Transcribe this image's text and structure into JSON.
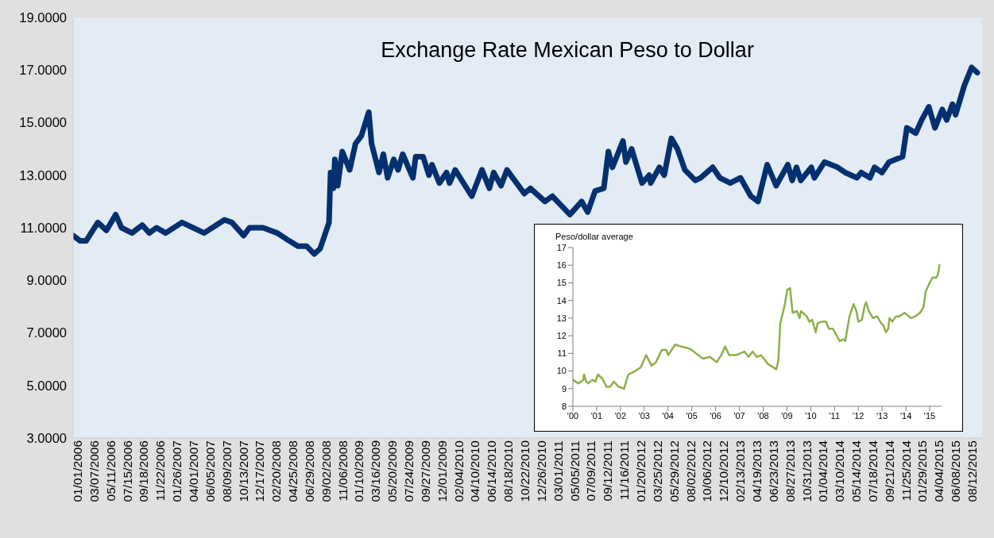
{
  "chart_data": [
    {
      "type": "line",
      "title": "Exchange Rate Mexican Peso to Dollar",
      "color": "#04306f",
      "x": [
        "2006-01-01",
        "2006-01-29",
        "2006-02-21",
        "2006-04-08",
        "2006-05-12",
        "2006-06-17",
        "2006-07-10",
        "2006-08-20",
        "2006-09-29",
        "2006-10-27",
        "2006-11-24",
        "2006-12-30",
        "2007-03-04",
        "2007-05-30",
        "2007-08-18",
        "2007-09-16",
        "2007-11-01",
        "2007-11-24",
        "2008-01-16",
        "2008-03-12",
        "2008-04-28",
        "2008-06-01",
        "2008-07-05",
        "2008-08-04",
        "2008-08-27",
        "2008-10-01",
        "2008-10-07",
        "2008-10-18",
        "2008-10-24",
        "2008-11-04",
        "2008-11-22",
        "2008-12-21",
        "2009-01-13",
        "2009-02-05",
        "2009-03-06",
        "2009-03-17",
        "2009-04-15",
        "2009-05-02",
        "2009-05-19",
        "2009-06-12",
        "2009-06-29",
        "2009-07-17",
        "2009-08-26",
        "2009-09-06",
        "2009-10-05",
        "2009-10-28",
        "2009-11-09",
        "2009-12-08",
        "2010-01-05",
        "2010-01-17",
        "2010-02-08",
        "2010-04-14",
        "2010-05-24",
        "2010-06-22",
        "2010-07-09",
        "2010-08-07",
        "2010-08-30",
        "2010-11-06",
        "2010-11-30",
        "2011-01-26",
        "2011-02-24",
        "2011-05-04",
        "2011-06-19",
        "2011-07-13",
        "2011-08-11",
        "2011-09-14",
        "2011-10-02",
        "2011-10-18",
        "2011-11-28",
        "2011-12-10",
        "2012-01-01",
        "2012-02-11",
        "2012-03-10",
        "2012-03-16",
        "2012-04-19",
        "2012-05-08",
        "2012-06-05",
        "2012-06-29",
        "2012-07-28",
        "2012-09-07",
        "2012-09-28",
        "2012-11-14",
        "2012-12-12",
        "2013-01-22",
        "2013-03-03",
        "2013-04-13",
        "2013-05-11",
        "2013-06-16",
        "2013-07-21",
        "2013-09-05",
        "2013-09-22",
        "2013-10-09",
        "2013-10-26",
        "2013-12-06",
        "2013-12-18",
        "2014-01-27",
        "2014-03-19",
        "2014-04-18",
        "2014-06-03",
        "2014-06-20",
        "2014-07-24",
        "2014-08-11",
        "2014-09-09",
        "2014-10-07",
        "2014-11-29",
        "2014-12-16",
        "2015-01-20",
        "2015-02-12",
        "2015-03-12",
        "2015-04-05",
        "2015-05-04",
        "2015-05-21",
        "2015-06-13",
        "2015-06-25",
        "2015-07-29",
        "2015-08-27",
        "2015-09-18"
      ],
      "values": [
        10.7,
        10.5,
        10.5,
        11.2,
        10.9,
        11.5,
        11.0,
        10.8,
        11.1,
        10.8,
        11.0,
        10.8,
        11.2,
        10.8,
        11.3,
        11.2,
        10.7,
        11.0,
        11.0,
        10.8,
        10.5,
        10.3,
        10.3,
        10.0,
        10.2,
        11.2,
        13.1,
        12.5,
        13.6,
        12.6,
        13.9,
        13.2,
        14.2,
        14.5,
        15.4,
        14.2,
        13.1,
        13.8,
        12.9,
        13.6,
        13.2,
        13.8,
        12.9,
        13.7,
        13.7,
        13.0,
        13.4,
        12.7,
        13.1,
        12.7,
        13.2,
        12.2,
        13.2,
        12.5,
        13.1,
        12.6,
        13.2,
        12.3,
        12.5,
        12.0,
        12.2,
        11.5,
        12.0,
        11.6,
        12.4,
        12.5,
        13.9,
        13.3,
        14.3,
        13.5,
        14.0,
        12.7,
        13.0,
        12.7,
        13.3,
        13.0,
        14.4,
        14.0,
        13.2,
        12.8,
        12.9,
        13.3,
        12.9,
        12.7,
        12.9,
        12.2,
        12.0,
        13.4,
        12.6,
        13.4,
        12.8,
        13.3,
        12.8,
        13.3,
        12.9,
        13.5,
        13.3,
        13.1,
        12.9,
        13.1,
        12.9,
        13.3,
        13.1,
        13.5,
        13.7,
        14.8,
        14.6,
        15.1,
        15.6,
        14.8,
        15.5,
        15.1,
        15.7,
        15.3,
        16.4,
        17.1,
        16.9
      ],
      "xlim": [
        "2006-01-01",
        "2015-10-07"
      ],
      "xticks": [
        {
          "value": "2006-01-01",
          "label": "01/01/2006"
        },
        {
          "value": "2006-03-07",
          "label": "03/07/2006"
        },
        {
          "value": "2006-05-11",
          "label": "05/11/2006"
        },
        {
          "value": "2006-07-15",
          "label": "07/15/2006"
        },
        {
          "value": "2006-09-18",
          "label": "09/18/2006"
        },
        {
          "value": "2006-11-22",
          "label": "11/22/2006"
        },
        {
          "value": "2007-01-26",
          "label": "01/26/2007"
        },
        {
          "value": "2007-04-01",
          "label": "04/01/2007"
        },
        {
          "value": "2007-06-05",
          "label": "06/05/2007"
        },
        {
          "value": "2007-08-09",
          "label": "08/09/2007"
        },
        {
          "value": "2007-10-13",
          "label": "10/13/2007"
        },
        {
          "value": "2007-12-17",
          "label": "12/17/2007"
        },
        {
          "value": "2008-02-20",
          "label": "02/20/2008"
        },
        {
          "value": "2008-04-25",
          "label": "04/25/2008"
        },
        {
          "value": "2008-06-29",
          "label": "06/29/2008"
        },
        {
          "value": "2008-09-02",
          "label": "09/02/2008"
        },
        {
          "value": "2008-11-06",
          "label": "11/06/2008"
        },
        {
          "value": "2009-01-10",
          "label": "01/10/2009"
        },
        {
          "value": "2009-03-16",
          "label": "03/16/2009"
        },
        {
          "value": "2009-05-20",
          "label": "05/20/2009"
        },
        {
          "value": "2009-07-24",
          "label": "07/24/2009"
        },
        {
          "value": "2009-09-27",
          "label": "09/27/2009"
        },
        {
          "value": "2009-12-01",
          "label": "12/01/2009"
        },
        {
          "value": "2010-02-04",
          "label": "02/04/2010"
        },
        {
          "value": "2010-04-10",
          "label": "04/10/2010"
        },
        {
          "value": "2010-06-14",
          "label": "06/14/2010"
        },
        {
          "value": "2010-08-18",
          "label": "08/18/2010"
        },
        {
          "value": "2010-10-22",
          "label": "10/22/2010"
        },
        {
          "value": "2010-12-26",
          "label": "12/26/2010"
        },
        {
          "value": "2011-03-01",
          "label": "03/01/2011"
        },
        {
          "value": "2011-05-05",
          "label": "05/05/2011"
        },
        {
          "value": "2011-07-09",
          "label": "07/09/2011"
        },
        {
          "value": "2011-09-12",
          "label": "09/12/2011"
        },
        {
          "value": "2011-11-16",
          "label": "11/16/2011"
        },
        {
          "value": "2012-01-20",
          "label": "01/20/2012"
        },
        {
          "value": "2012-03-25",
          "label": "03/25/2012"
        },
        {
          "value": "2012-05-29",
          "label": "05/29/2012"
        },
        {
          "value": "2012-08-02",
          "label": "08/02/2012"
        },
        {
          "value": "2012-10-06",
          "label": "10/06/2012"
        },
        {
          "value": "2012-12-10",
          "label": "12/10/2012"
        },
        {
          "value": "2013-02-13",
          "label": "02/13/2013"
        },
        {
          "value": "2013-04-19",
          "label": "04/19/2013"
        },
        {
          "value": "2013-06-23",
          "label": "06/23/2013"
        },
        {
          "value": "2013-08-27",
          "label": "08/27/2013"
        },
        {
          "value": "2013-10-31",
          "label": "10/31/2013"
        },
        {
          "value": "2014-01-04",
          "label": "01/04/2014"
        },
        {
          "value": "2014-03-10",
          "label": "03/10/2014"
        },
        {
          "value": "2014-05-14",
          "label": "05/14/2014"
        },
        {
          "value": "2014-07-18",
          "label": "07/18/2014"
        },
        {
          "value": "2014-09-21",
          "label": "09/21/2014"
        },
        {
          "value": "2014-11-25",
          "label": "11/25/2014"
        },
        {
          "value": "2015-01-29",
          "label": "01/29/2015"
        },
        {
          "value": "2015-04-04",
          "label": "04/04/2015"
        },
        {
          "value": "2015-06-08",
          "label": "06/08/2015"
        },
        {
          "value": "2015-08-12",
          "label": "08/12/2015"
        }
      ],
      "ylim": [
        3,
        19
      ],
      "yticks": [
        {
          "value": 3,
          "label": "3.0000"
        },
        {
          "value": 5,
          "label": "5.0000"
        },
        {
          "value": 7,
          "label": "7.0000"
        },
        {
          "value": 9,
          "label": "9.0000"
        },
        {
          "value": 11,
          "label": "11.0000"
        },
        {
          "value": 13,
          "label": "13.0000"
        },
        {
          "value": 15,
          "label": "15.0000"
        },
        {
          "value": 17,
          "label": "17.0000"
        },
        {
          "value": 19,
          "label": "19.0000"
        }
      ]
    },
    {
      "type": "line",
      "ylabel": "Peso/dollar average",
      "color": "#8db04a",
      "x": [
        2000.0,
        2000.23,
        2000.44,
        2000.47,
        2000.56,
        2000.64,
        2000.81,
        2000.95,
        2001.05,
        2001.22,
        2001.42,
        2001.57,
        2001.72,
        2001.92,
        2002.15,
        2002.33,
        2002.62,
        2002.85,
        2003.08,
        2003.31,
        2003.49,
        2003.74,
        2003.93,
        2004.01,
        2004.3,
        2004.53,
        2004.83,
        2005.0,
        2005.17,
        2005.47,
        2005.76,
        2006.05,
        2006.28,
        2006.4,
        2006.57,
        2006.86,
        2007.21,
        2007.38,
        2007.56,
        2007.73,
        2007.91,
        2008.2,
        2008.55,
        2008.64,
        2008.72,
        2008.9,
        2009.01,
        2009.13,
        2009.24,
        2009.42,
        2009.53,
        2009.59,
        2009.83,
        2009.94,
        2010.06,
        2010.21,
        2010.29,
        2010.47,
        2010.64,
        2010.76,
        2010.93,
        2011.05,
        2011.22,
        2011.37,
        2011.45,
        2011.63,
        2011.8,
        2011.92,
        2012.0,
        2012.15,
        2012.27,
        2012.33,
        2012.44,
        2012.62,
        2012.79,
        2012.97,
        2013.05,
        2013.16,
        2013.26,
        2013.31,
        2013.43,
        2013.58,
        2013.72,
        2013.95,
        2014.21,
        2014.4,
        2014.59,
        2014.74,
        2014.83,
        2015.0,
        2015.12,
        2015.29,
        2015.35,
        2015.41
      ],
      "values": [
        9.5,
        9.3,
        9.5,
        9.8,
        9.4,
        9.3,
        9.5,
        9.4,
        9.8,
        9.6,
        9.1,
        9.1,
        9.4,
        9.1,
        9.0,
        9.8,
        10.0,
        10.2,
        10.9,
        10.3,
        10.5,
        11.2,
        11.2,
        10.9,
        11.5,
        11.4,
        11.3,
        11.2,
        11.0,
        10.7,
        10.8,
        10.5,
        11.0,
        11.4,
        10.9,
        10.9,
        11.1,
        10.8,
        11.1,
        10.8,
        10.9,
        10.4,
        10.1,
        10.6,
        12.7,
        13.7,
        14.6,
        14.7,
        13.3,
        13.4,
        13.0,
        13.4,
        13.1,
        12.8,
        12.9,
        12.2,
        12.7,
        12.8,
        12.8,
        12.4,
        12.4,
        12.1,
        11.7,
        11.8,
        11.7,
        13.1,
        13.8,
        13.4,
        12.8,
        12.9,
        13.7,
        13.9,
        13.4,
        13.0,
        13.1,
        12.7,
        12.6,
        12.2,
        12.4,
        13.0,
        12.8,
        13.1,
        13.1,
        13.3,
        13.0,
        13.1,
        13.3,
        13.6,
        14.5,
        15.0,
        15.3,
        15.3,
        15.5,
        16.0
      ],
      "xlim": [
        2000,
        2015.5
      ],
      "xticks": [
        {
          "value": 2000,
          "label": "'00"
        },
        {
          "value": 2001,
          "label": "'01"
        },
        {
          "value": 2002,
          "label": "'02"
        },
        {
          "value": 2003,
          "label": "'03"
        },
        {
          "value": 2004,
          "label": "'04"
        },
        {
          "value": 2005,
          "label": "'05"
        },
        {
          "value": 2006,
          "label": "'06"
        },
        {
          "value": 2007,
          "label": "'07"
        },
        {
          "value": 2008,
          "label": "'08"
        },
        {
          "value": 2009,
          "label": "'09"
        },
        {
          "value": 2010,
          "label": "'10"
        },
        {
          "value": 2011,
          "label": "'11"
        },
        {
          "value": 2012,
          "label": "'12"
        },
        {
          "value": 2013,
          "label": "'13"
        },
        {
          "value": 2014,
          "label": "'14"
        },
        {
          "value": 2015,
          "label": "'15"
        }
      ],
      "ylim": [
        8,
        17
      ],
      "yticks": [
        8,
        9,
        10,
        11,
        12,
        13,
        14,
        15,
        16,
        17
      ]
    }
  ]
}
